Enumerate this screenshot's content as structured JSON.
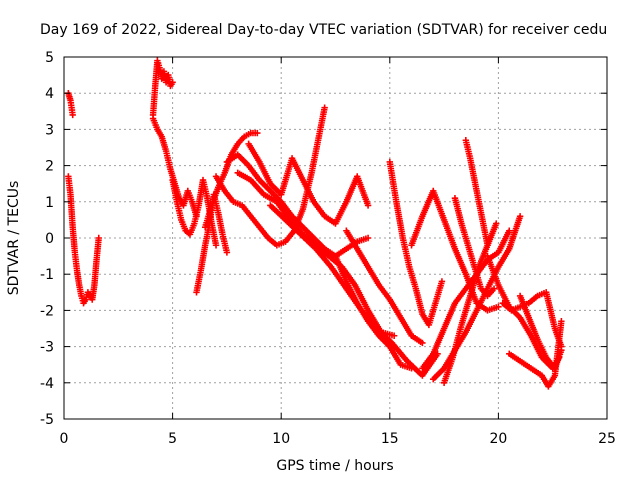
{
  "chart_data": {
    "type": "scatter",
    "title": "Day 169 of 2022, Sidereal Day-to-day VTEC variation (SDTVAR) for receiver cedu",
    "xlabel": "GPS time / hours",
    "ylabel": "SDTVAR / TECUs",
    "xlim": [
      0,
      25
    ],
    "ylim": [
      -5,
      5
    ],
    "xticks": [
      "0",
      "5",
      "10",
      "15",
      "20",
      "25"
    ],
    "yticks": [
      "-5",
      "-4",
      "-3",
      "-2",
      "-1",
      "0",
      "1",
      "2",
      "3",
      "4",
      "5"
    ],
    "grid": true,
    "marker": "+",
    "color": "#ff0000",
    "series": [
      {
        "x": [
          0.2,
          0.25,
          0.3,
          0.35,
          0.4
        ],
        "y": [
          4.0,
          3.9,
          3.8,
          3.6,
          3.4
        ]
      },
      {
        "x": [
          0.2,
          0.3,
          0.4,
          0.5,
          0.6,
          0.7,
          0.8,
          0.9,
          1.0,
          1.1,
          1.2,
          1.3,
          1.4,
          1.5,
          1.6
        ],
        "y": [
          1.7,
          1.2,
          0.3,
          -0.4,
          -0.9,
          -1.3,
          -1.6,
          -1.8,
          -1.7,
          -1.5,
          -1.6,
          -1.7,
          -1.3,
          -0.6,
          0.0
        ]
      },
      {
        "x": [
          4.1,
          4.2,
          4.3,
          4.4,
          4.5,
          4.6,
          4.7,
          4.8,
          4.9,
          5.0
        ],
        "y": [
          3.4,
          4.2,
          4.9,
          4.7,
          4.4,
          4.6,
          4.3,
          4.5,
          4.2,
          4.3
        ]
      },
      {
        "x": [
          4.1,
          4.3,
          4.5,
          4.7,
          4.9,
          5.1,
          5.3,
          5.5,
          5.7,
          5.9,
          6.1
        ],
        "y": [
          3.3,
          3.0,
          2.8,
          2.4,
          1.9,
          1.5,
          1.1,
          0.9,
          1.3,
          1.0,
          0.6
        ]
      },
      {
        "x": [
          5.0,
          5.2,
          5.4,
          5.6,
          5.8,
          6.0,
          6.2,
          6.4,
          6.6,
          6.8,
          7.0
        ],
        "y": [
          1.6,
          1.0,
          0.5,
          0.2,
          0.1,
          0.4,
          0.9,
          1.6,
          1.1,
          0.4,
          -0.2
        ]
      },
      {
        "x": [
          6.1,
          6.3,
          6.5,
          6.7,
          6.9,
          7.1,
          7.3,
          7.5
        ],
        "y": [
          -1.5,
          -0.9,
          -0.2,
          0.4,
          1.2,
          0.7,
          0.1,
          -0.4
        ]
      },
      {
        "x": [
          6.5,
          6.8,
          7.1,
          7.4,
          7.7,
          8.0,
          8.3,
          8.6,
          8.9
        ],
        "y": [
          0.3,
          0.9,
          1.4,
          1.8,
          2.3,
          2.6,
          2.8,
          2.9,
          2.9
        ]
      },
      {
        "x": [
          7.0,
          7.4,
          7.8,
          8.2,
          8.6,
          9.0,
          9.4,
          9.8,
          10.2,
          10.6,
          11.0,
          11.4,
          11.8,
          12.0
        ],
        "y": [
          1.7,
          1.3,
          1.0,
          0.9,
          0.6,
          0.3,
          0.0,
          -0.2,
          -0.1,
          0.2,
          0.8,
          1.8,
          3.0,
          3.6
        ]
      },
      {
        "x": [
          7.5,
          8.0,
          8.5,
          9.0,
          9.5,
          10.0,
          10.5,
          11.0,
          11.5,
          12.0,
          12.5,
          13.0,
          13.5,
          14.0
        ],
        "y": [
          2.1,
          2.3,
          2.0,
          1.6,
          1.3,
          1.0,
          0.6,
          0.3,
          0.0,
          -0.3,
          -0.5,
          -0.3,
          -0.1,
          0.0
        ]
      },
      {
        "x": [
          8.0,
          8.6,
          9.2,
          9.8,
          10.4,
          11.0,
          11.6,
          12.2,
          12.8,
          13.4,
          14.0,
          14.6,
          15.2
        ],
        "y": [
          1.8,
          1.6,
          1.2,
          1.0,
          0.5,
          0.1,
          -0.2,
          -0.5,
          -0.8,
          -1.3,
          -2.0,
          -2.6,
          -2.7
        ]
      },
      {
        "x": [
          8.5,
          9.0,
          9.5,
          10.0,
          10.5,
          11.0,
          11.5,
          12.0,
          12.5,
          13.0,
          13.5,
          14.0
        ],
        "y": [
          2.6,
          2.1,
          1.5,
          1.2,
          2.2,
          1.6,
          1.0,
          0.6,
          0.4,
          1.0,
          1.7,
          0.9
        ]
      },
      {
        "x": [
          9.5,
          10.2,
          10.9,
          11.6,
          12.3,
          13.0,
          13.7,
          14.4,
          15.1,
          15.8,
          16.5,
          17.2
        ],
        "y": [
          0.9,
          0.5,
          0.1,
          -0.3,
          -0.8,
          -1.4,
          -2.0,
          -2.5,
          -2.9,
          -3.4,
          -3.8,
          -3.2
        ]
      },
      {
        "x": [
          12.5,
          13.0,
          13.5,
          14.0,
          14.5,
          15.0,
          15.5,
          16.0
        ],
        "y": [
          -0.5,
          -1.2,
          -1.8,
          -2.3,
          -2.7,
          -3.0,
          -3.5,
          -3.6
        ]
      },
      {
        "x": [
          13.0,
          13.5,
          14.0,
          14.5,
          15.0,
          15.5,
          16.0,
          16.5
        ],
        "y": [
          0.2,
          -0.3,
          -0.8,
          -1.3,
          -1.7,
          -2.2,
          -2.7,
          -2.9
        ]
      },
      {
        "x": [
          15.0,
          15.3,
          15.6,
          15.9,
          16.2,
          16.5,
          16.8,
          17.1,
          17.4
        ],
        "y": [
          2.1,
          1.0,
          0.0,
          -0.8,
          -1.4,
          -2.1,
          -2.4,
          -1.8,
          -1.2
        ]
      },
      {
        "x": [
          16.0,
          16.5,
          17.0,
          17.5,
          18.0,
          18.5,
          19.0,
          19.5,
          20.0
        ],
        "y": [
          -0.2,
          0.6,
          1.3,
          0.5,
          -0.3,
          -1.0,
          -1.8,
          -2.0,
          -1.9
        ]
      },
      {
        "x": [
          16.5,
          17.0,
          17.5,
          18.0,
          18.5,
          19.0,
          19.5,
          20.0,
          20.5
        ],
        "y": [
          -3.6,
          -3.2,
          -2.5,
          -1.8,
          -1.4,
          -1.0,
          -0.6,
          -0.4,
          0.2
        ]
      },
      {
        "x": [
          17.0,
          17.5,
          18.0,
          18.5,
          19.0,
          19.5,
          20.0,
          20.5,
          21.0
        ],
        "y": [
          -3.9,
          -3.6,
          -3.1,
          -2.6,
          -2.0,
          -1.4,
          -0.8,
          -0.3,
          0.6
        ]
      },
      {
        "x": [
          17.5,
          17.9,
          18.3,
          18.7,
          19.1,
          19.5,
          19.9
        ],
        "y": [
          -4.0,
          -3.3,
          -2.4,
          -1.6,
          -0.8,
          -0.2,
          0.4
        ]
      },
      {
        "x": [
          18.0,
          18.3,
          18.6,
          18.9,
          19.2,
          19.5,
          19.8
        ],
        "y": [
          1.1,
          0.4,
          -0.2,
          -0.8,
          -1.4,
          -1.6,
          -1.4
        ]
      },
      {
        "x": [
          18.5,
          18.7,
          18.9,
          19.1,
          19.3,
          19.5
        ],
        "y": [
          2.7,
          2.2,
          1.6,
          1.0,
          0.4,
          -0.2
        ]
      },
      {
        "x": [
          19.5,
          20.0,
          20.5,
          21.0,
          21.5,
          22.0,
          22.5,
          22.8
        ],
        "y": [
          -0.5,
          -1.3,
          -1.9,
          -2.2,
          -2.7,
          -3.3,
          -3.6,
          -3.3
        ]
      },
      {
        "x": [
          20.2,
          20.6,
          21.0,
          21.4,
          21.8,
          22.2,
          22.6,
          22.9
        ],
        "y": [
          -1.8,
          -2.0,
          -1.9,
          -1.8,
          -1.6,
          -1.5,
          -2.5,
          -3.0
        ]
      },
      {
        "x": [
          20.5,
          21.0,
          21.5,
          22.0,
          22.3,
          22.6,
          22.9
        ],
        "y": [
          -3.2,
          -3.4,
          -3.6,
          -3.8,
          -4.1,
          -3.8,
          -2.3
        ]
      },
      {
        "x": [
          21.0,
          21.4,
          21.8,
          22.2,
          22.6,
          22.9
        ],
        "y": [
          -1.6,
          -2.2,
          -2.8,
          -3.3,
          -3.6,
          -3.1
        ]
      }
    ]
  }
}
